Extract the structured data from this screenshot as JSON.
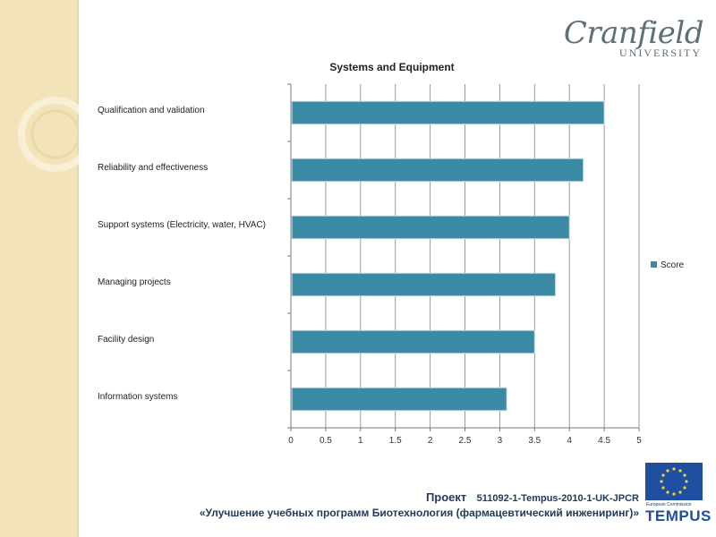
{
  "logo": {
    "main": "Cranfield",
    "sub": "UNIVERSITY"
  },
  "footer": {
    "project_label": "Проект",
    "project_code": "511092-1-Tempus-2010-1-UK-JPCR",
    "project_title": "«Улучшение учебных программ Биотехнология (фармацевтический инжениринг)»"
  },
  "eu_logo": {
    "caption": "European Commission",
    "name": "TEMPUS"
  },
  "colors": {
    "bar": "#3a8aa3",
    "band": "#f2e4b8",
    "footer_text": "#1f3a5a",
    "eu_blue": "#1f4fa0"
  },
  "chart_data": {
    "type": "bar",
    "orientation": "horizontal",
    "title": "Systems and Equipment",
    "categories": [
      "Qualification and validation",
      "Reliability and effectiveness",
      "Support systems (Electricity, water, HVAC)",
      "Managing projects",
      "Facility design",
      "Information systems"
    ],
    "series": [
      {
        "name": "Score",
        "values": [
          4.5,
          4.2,
          4.0,
          3.8,
          3.5,
          3.1
        ]
      }
    ],
    "xlim": [
      0,
      5
    ],
    "xticks": [
      "0",
      "0.5",
      "1",
      "1.5",
      "2",
      "2.5",
      "3",
      "3.5",
      "4",
      "4.5",
      "5"
    ],
    "legend": "right",
    "grid": true
  }
}
